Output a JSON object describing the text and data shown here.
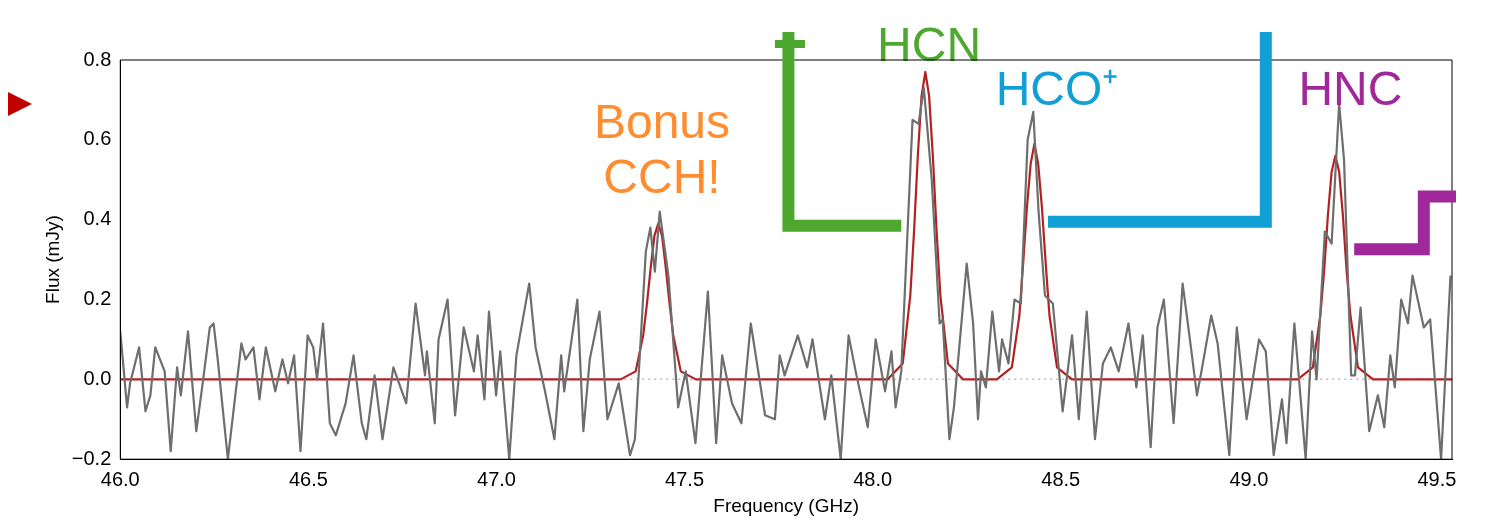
{
  "chart_data": {
    "type": "line",
    "xlabel": "Frequency (GHz)",
    "ylabel": "Flux (mJy)",
    "xlim": [
      46.0,
      49.54
    ],
    "ylim": [
      -0.2,
      0.8
    ],
    "xticks": [
      {
        "value": 46,
        "label": "46.0"
      },
      {
        "value": 46.5,
        "label": "46.5"
      },
      {
        "value": 47,
        "label": "47.0"
      },
      {
        "value": 47.5,
        "label": "47.5"
      },
      {
        "value": 48,
        "label": "48.0"
      },
      {
        "value": 48.5,
        "label": "48.5"
      },
      {
        "value": 49,
        "label": "49.0"
      },
      {
        "value": 49.5,
        "label": "49.5"
      }
    ],
    "yticks": [
      {
        "value": -0.2,
        "label": "−0.2"
      },
      {
        "value": 0,
        "label": "0.0"
      },
      {
        "value": 0.2,
        "label": "0.2"
      },
      {
        "value": 0.4,
        "label": "0.4"
      },
      {
        "value": 0.6,
        "label": "0.6"
      },
      {
        "value": 0.8,
        "label": "0.8"
      }
    ],
    "marker": "none",
    "line_style": "solid",
    "ref_lines": [
      {
        "axis": "y",
        "value": 0,
        "color": "#bbbbbb",
        "line_style": "dotted"
      }
    ],
    "annotations": [
      "Bonus\nCCH!",
      {
        "text": "HCN",
        "x": 48.15,
        "y": 0.77
      },
      "HCO⁺",
      "HNC"
    ],
    "series": [
      {
        "color": "#6e6e6e",
        "x": [
          46.0,
          46.018,
          46.026,
          46.05,
          46.067,
          46.08,
          46.093,
          46.118,
          46.134,
          46.151,
          46.161,
          46.18,
          46.202,
          46.219,
          46.238,
          46.248,
          46.259,
          46.286,
          46.307,
          46.322,
          46.333,
          46.354,
          46.37,
          46.387,
          46.412,
          46.431,
          46.446,
          46.462,
          46.479,
          46.498,
          46.513,
          46.523,
          46.539,
          46.557,
          46.573,
          46.599,
          46.62,
          46.642,
          46.654,
          46.676,
          46.697,
          46.726,
          46.76,
          46.785,
          46.81,
          46.815,
          46.836,
          46.846,
          46.87,
          46.89,
          46.913,
          46.94,
          46.95,
          46.968,
          46.98,
          46.999,
          47.01,
          47.034,
          47.053,
          47.087,
          47.104,
          47.129,
          47.154,
          47.172,
          47.18,
          47.215,
          47.231,
          47.248,
          47.274,
          47.295,
          47.325,
          47.355,
          47.368,
          47.397,
          47.409,
          47.421,
          47.434,
          47.457,
          47.483,
          47.503,
          47.529,
          47.562,
          47.584,
          47.6,
          47.626,
          47.651,
          47.676,
          47.714,
          47.74,
          47.753,
          47.766,
          47.801,
          47.826,
          47.84,
          47.873,
          47.89,
          47.915,
          47.936,
          47.957,
          47.987,
          48.008,
          48.033,
          48.05,
          48.061,
          48.076,
          48.106,
          48.122,
          48.136,
          48.157,
          48.178,
          48.186,
          48.204,
          48.216,
          48.25,
          48.267,
          48.28,
          48.288,
          48.301,
          48.318,
          48.336,
          48.344,
          48.361,
          48.377,
          48.394,
          48.412,
          48.427,
          48.441,
          48.458,
          48.479,
          48.505,
          48.53,
          48.548,
          48.569,
          48.591,
          48.612,
          48.633,
          48.654,
          48.68,
          48.701,
          48.718,
          48.739,
          48.757,
          48.774,
          48.8,
          48.824,
          48.846,
          48.862,
          48.874,
          48.9,
          48.917,
          48.948,
          48.968,
          48.994,
          49.027,
          49.045,
          49.066,
          49.088,
          49.1,
          49.121,
          49.151,
          49.168,
          49.18,
          49.202,
          49.22,
          49.24,
          49.253,
          49.272,
          49.282,
          49.297,
          49.32,
          49.343,
          49.36,
          49.376,
          49.388,
          49.405,
          49.423,
          49.435,
          49.465,
          49.482,
          49.511,
          49.536
        ],
        "values": [
          0.12,
          -0.07,
          -0.01,
          0.08,
          -0.08,
          -0.04,
          0.08,
          0.02,
          -0.18,
          0.03,
          -0.04,
          0.12,
          -0.13,
          -0.01,
          0.13,
          0.14,
          0.05,
          -0.2,
          -0.03,
          0.09,
          0.05,
          0.08,
          -0.05,
          0.08,
          -0.03,
          0.05,
          -0.01,
          0.06,
          -0.18,
          0.11,
          0.08,
          0.0,
          0.14,
          -0.11,
          -0.14,
          -0.06,
          0.06,
          -0.11,
          -0.15,
          0.01,
          -0.15,
          0.03,
          -0.06,
          0.19,
          0.01,
          0.07,
          -0.11,
          0.1,
          0.2,
          -0.09,
          0.13,
          0.02,
          0.11,
          -0.05,
          0.17,
          -0.04,
          0.07,
          -0.2,
          0.06,
          0.24,
          0.08,
          -0.03,
          -0.15,
          0.06,
          -0.03,
          0.2,
          -0.13,
          0.05,
          0.17,
          -0.1,
          -0.01,
          -0.19,
          -0.15,
          0.32,
          0.38,
          0.27,
          0.42,
          0.26,
          -0.07,
          0.02,
          -0.16,
          0.22,
          -0.16,
          0.06,
          -0.06,
          -0.11,
          0.14,
          -0.09,
          -0.1,
          0.06,
          0.01,
          0.11,
          0.03,
          0.1,
          -0.1,
          0.01,
          -0.2,
          0.11,
          0.01,
          -0.12,
          0.1,
          -0.03,
          0.07,
          -0.07,
          0.02,
          0.65,
          0.64,
          0.73,
          0.5,
          0.14,
          0.15,
          -0.15,
          -0.07,
          0.29,
          0.14,
          -0.1,
          0.02,
          -0.02,
          0.17,
          0.02,
          0.1,
          0.04,
          0.2,
          0.19,
          0.6,
          0.67,
          0.42,
          0.21,
          0.19,
          -0.08,
          0.11,
          -0.1,
          0.17,
          -0.15,
          0.04,
          0.08,
          0.02,
          0.14,
          -0.02,
          0.11,
          -0.17,
          0.13,
          0.2,
          -0.11,
          0.24,
          0.08,
          -0.04,
          0.02,
          0.16,
          0.09,
          -0.19,
          0.13,
          -0.1,
          0.1,
          0.07,
          -0.19,
          -0.05,
          -0.16,
          0.14,
          -0.2,
          0.12,
          0.0,
          0.37,
          0.34,
          0.69,
          0.55,
          0.01,
          0.01,
          0.18,
          -0.13,
          -0.04,
          -0.12,
          0.06,
          -0.02,
          0.2,
          0.14,
          0.26,
          0.13,
          0.15,
          -0.2,
          0.26
        ]
      },
      {
        "color": "#b22222",
        "x": [
          46.0,
          47.33,
          47.37,
          47.39,
          47.4,
          47.41,
          47.42,
          47.43,
          47.44,
          47.45,
          47.46,
          47.47,
          47.49,
          47.53,
          48.04,
          48.08,
          48.1,
          48.11,
          48.12,
          48.13,
          48.14,
          48.15,
          48.16,
          48.17,
          48.18,
          48.2,
          48.24,
          48.33,
          48.37,
          48.39,
          48.4,
          48.41,
          48.42,
          48.43,
          48.44,
          48.45,
          48.46,
          48.47,
          48.49,
          48.53,
          49.13,
          49.17,
          49.19,
          49.2,
          49.21,
          49.22,
          49.23,
          49.24,
          49.25,
          49.26,
          49.27,
          49.29,
          49.33,
          49.54
        ],
        "values": [
          0,
          0,
          0.02,
          0.11,
          0.19,
          0.28,
          0.36,
          0.39,
          0.36,
          0.28,
          0.19,
          0.11,
          0.02,
          0,
          0,
          0.04,
          0.21,
          0.37,
          0.56,
          0.71,
          0.77,
          0.71,
          0.56,
          0.37,
          0.21,
          0.04,
          0,
          0,
          0.03,
          0.16,
          0.29,
          0.43,
          0.54,
          0.59,
          0.54,
          0.43,
          0.29,
          0.16,
          0.03,
          0,
          0,
          0.03,
          0.16,
          0.27,
          0.41,
          0.52,
          0.56,
          0.52,
          0.41,
          0.27,
          0.16,
          0.03,
          0,
          0
        ]
      }
    ]
  }
}
